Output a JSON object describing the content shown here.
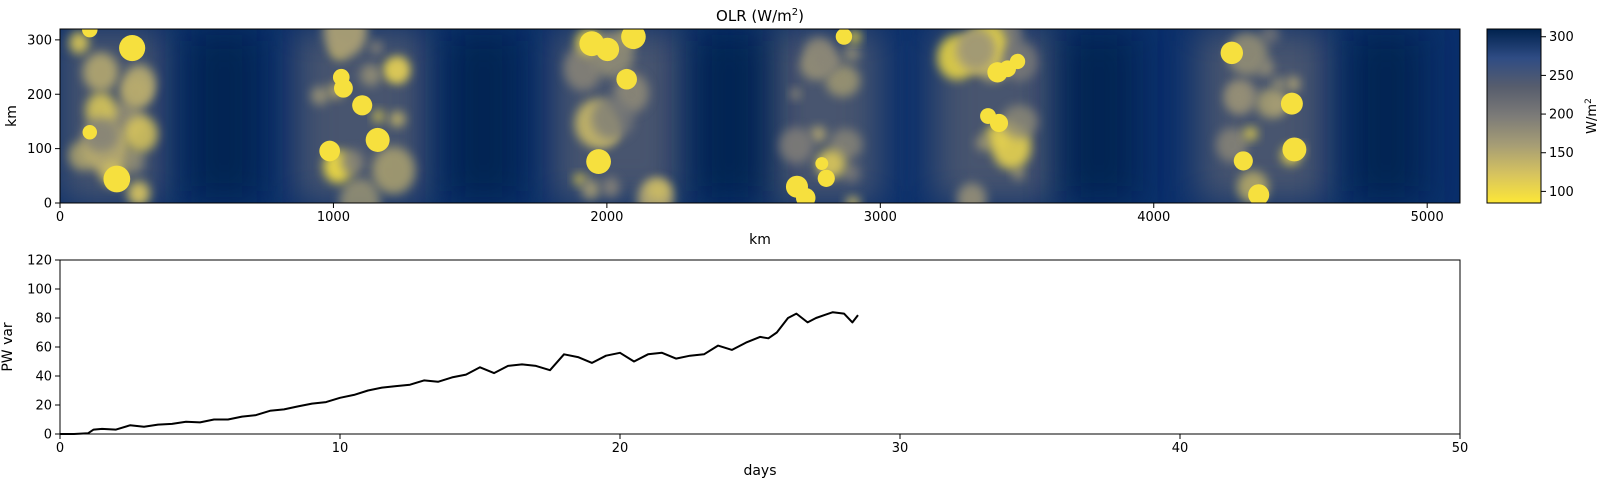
{
  "chart_data": [
    {
      "type": "heatmap",
      "title": "OLR (W/m",
      "title_sup": "2",
      "title_end": ")",
      "xlabel": "km",
      "ylabel": "km",
      "xlim": [
        0,
        5120
      ],
      "ylim": [
        0,
        320
      ],
      "xticks": [
        0,
        1000,
        2000,
        3000,
        4000,
        5000
      ],
      "yticks": [
        0,
        100,
        200,
        300
      ],
      "colorbar": {
        "label": "W/m",
        "label_sup": "2",
        "range": [
          85,
          310
        ],
        "ticks": [
          100,
          150,
          200,
          250,
          300
        ],
        "colormap": "cividis_r",
        "colors": [
          "#fde737",
          "#d6c35f",
          "#a69d75",
          "#7c7b78",
          "#575d6d",
          "#2f4c84",
          "#00224e"
        ]
      },
      "clusters": [
        {
          "x": 190,
          "spread": 120
        },
        {
          "x": 1100,
          "spread": 150
        },
        {
          "x": 2040,
          "spread": 150
        },
        {
          "x": 2790,
          "spread": 130
        },
        {
          "x": 3420,
          "spread": 140
        },
        {
          "x": 4400,
          "spread": 150
        }
      ]
    },
    {
      "type": "line",
      "xlabel": "days",
      "ylabel": "PW var",
      "xlim": [
        0,
        50
      ],
      "ylim": [
        0,
        120
      ],
      "xticks": [
        0,
        10,
        20,
        30,
        40,
        50
      ],
      "yticks": [
        0,
        20,
        40,
        60,
        80,
        100,
        120
      ],
      "color": "#000000",
      "series": [
        {
          "x": [
            0,
            0.5,
            1.0,
            1.2,
            1.5,
            2.0,
            2.5,
            3.0,
            3.5,
            4.0,
            4.5,
            5.0,
            5.5,
            6.0,
            6.5,
            7.0,
            7.5,
            8.0,
            8.5,
            9.0,
            9.5,
            10.0,
            10.5,
            11.0,
            11.5,
            12.0,
            12.5,
            13.0,
            13.5,
            14.0,
            14.5,
            15.0,
            15.5,
            16.0,
            16.5,
            17.0,
            17.5,
            18.0,
            18.5,
            19.0,
            19.5,
            20.0,
            20.5,
            21.0,
            21.5,
            22.0,
            22.5,
            23.0,
            23.5,
            24.0,
            24.5,
            25.0,
            25.3,
            25.6,
            26.0,
            26.3,
            26.7,
            27.0,
            27.3,
            27.6,
            28.0,
            28.3,
            28.5
          ],
          "y": [
            0,
            0,
            0.5,
            3,
            3.5,
            3,
            6,
            5,
            6.5,
            7,
            8.5,
            8,
            10,
            10,
            12,
            13,
            16,
            17,
            19,
            21,
            22,
            25,
            27,
            30,
            32,
            33,
            34,
            37,
            36,
            39,
            41,
            46,
            42,
            47,
            48,
            47,
            44,
            55,
            53,
            49,
            54,
            56,
            50,
            55,
            56,
            52,
            54,
            55,
            61,
            58,
            63,
            67,
            66,
            70,
            80,
            83,
            77,
            80,
            82,
            84,
            83,
            77,
            82
          ]
        }
      ]
    }
  ]
}
